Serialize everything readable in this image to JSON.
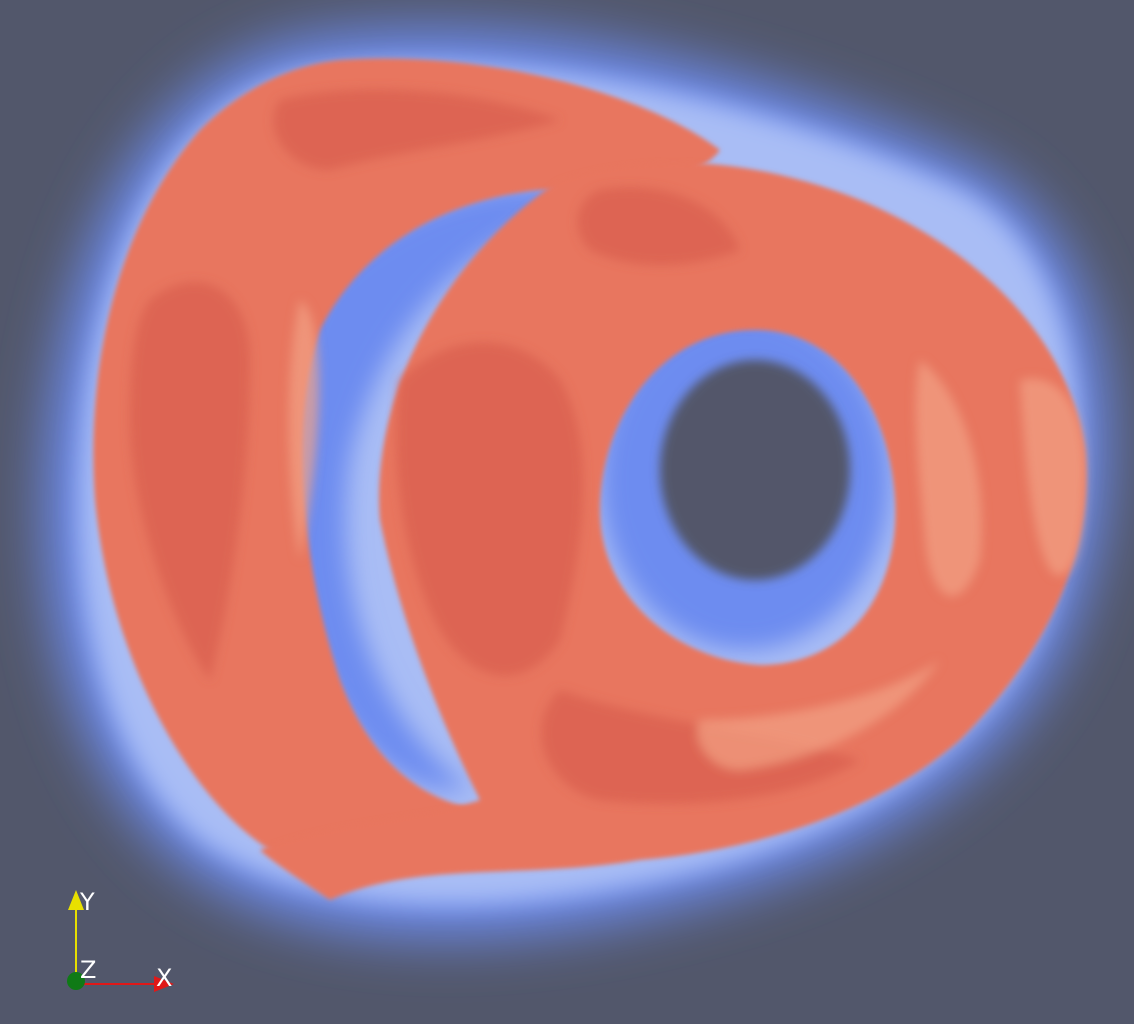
{
  "scene": {
    "background_color": "#52576b",
    "glow_color": "#6d8cf0",
    "glow_light_color": "#a9bdf5",
    "volume_color": "#e8765f",
    "volume_dark_color": "#d9604f",
    "volume_light_color": "#f2a184"
  },
  "orientation_axes": {
    "x_label": "X",
    "y_label": "Y",
    "z_label": "Z",
    "x_color": "#e01818",
    "y_color": "#e8e000",
    "z_color": "#0f7a16"
  }
}
